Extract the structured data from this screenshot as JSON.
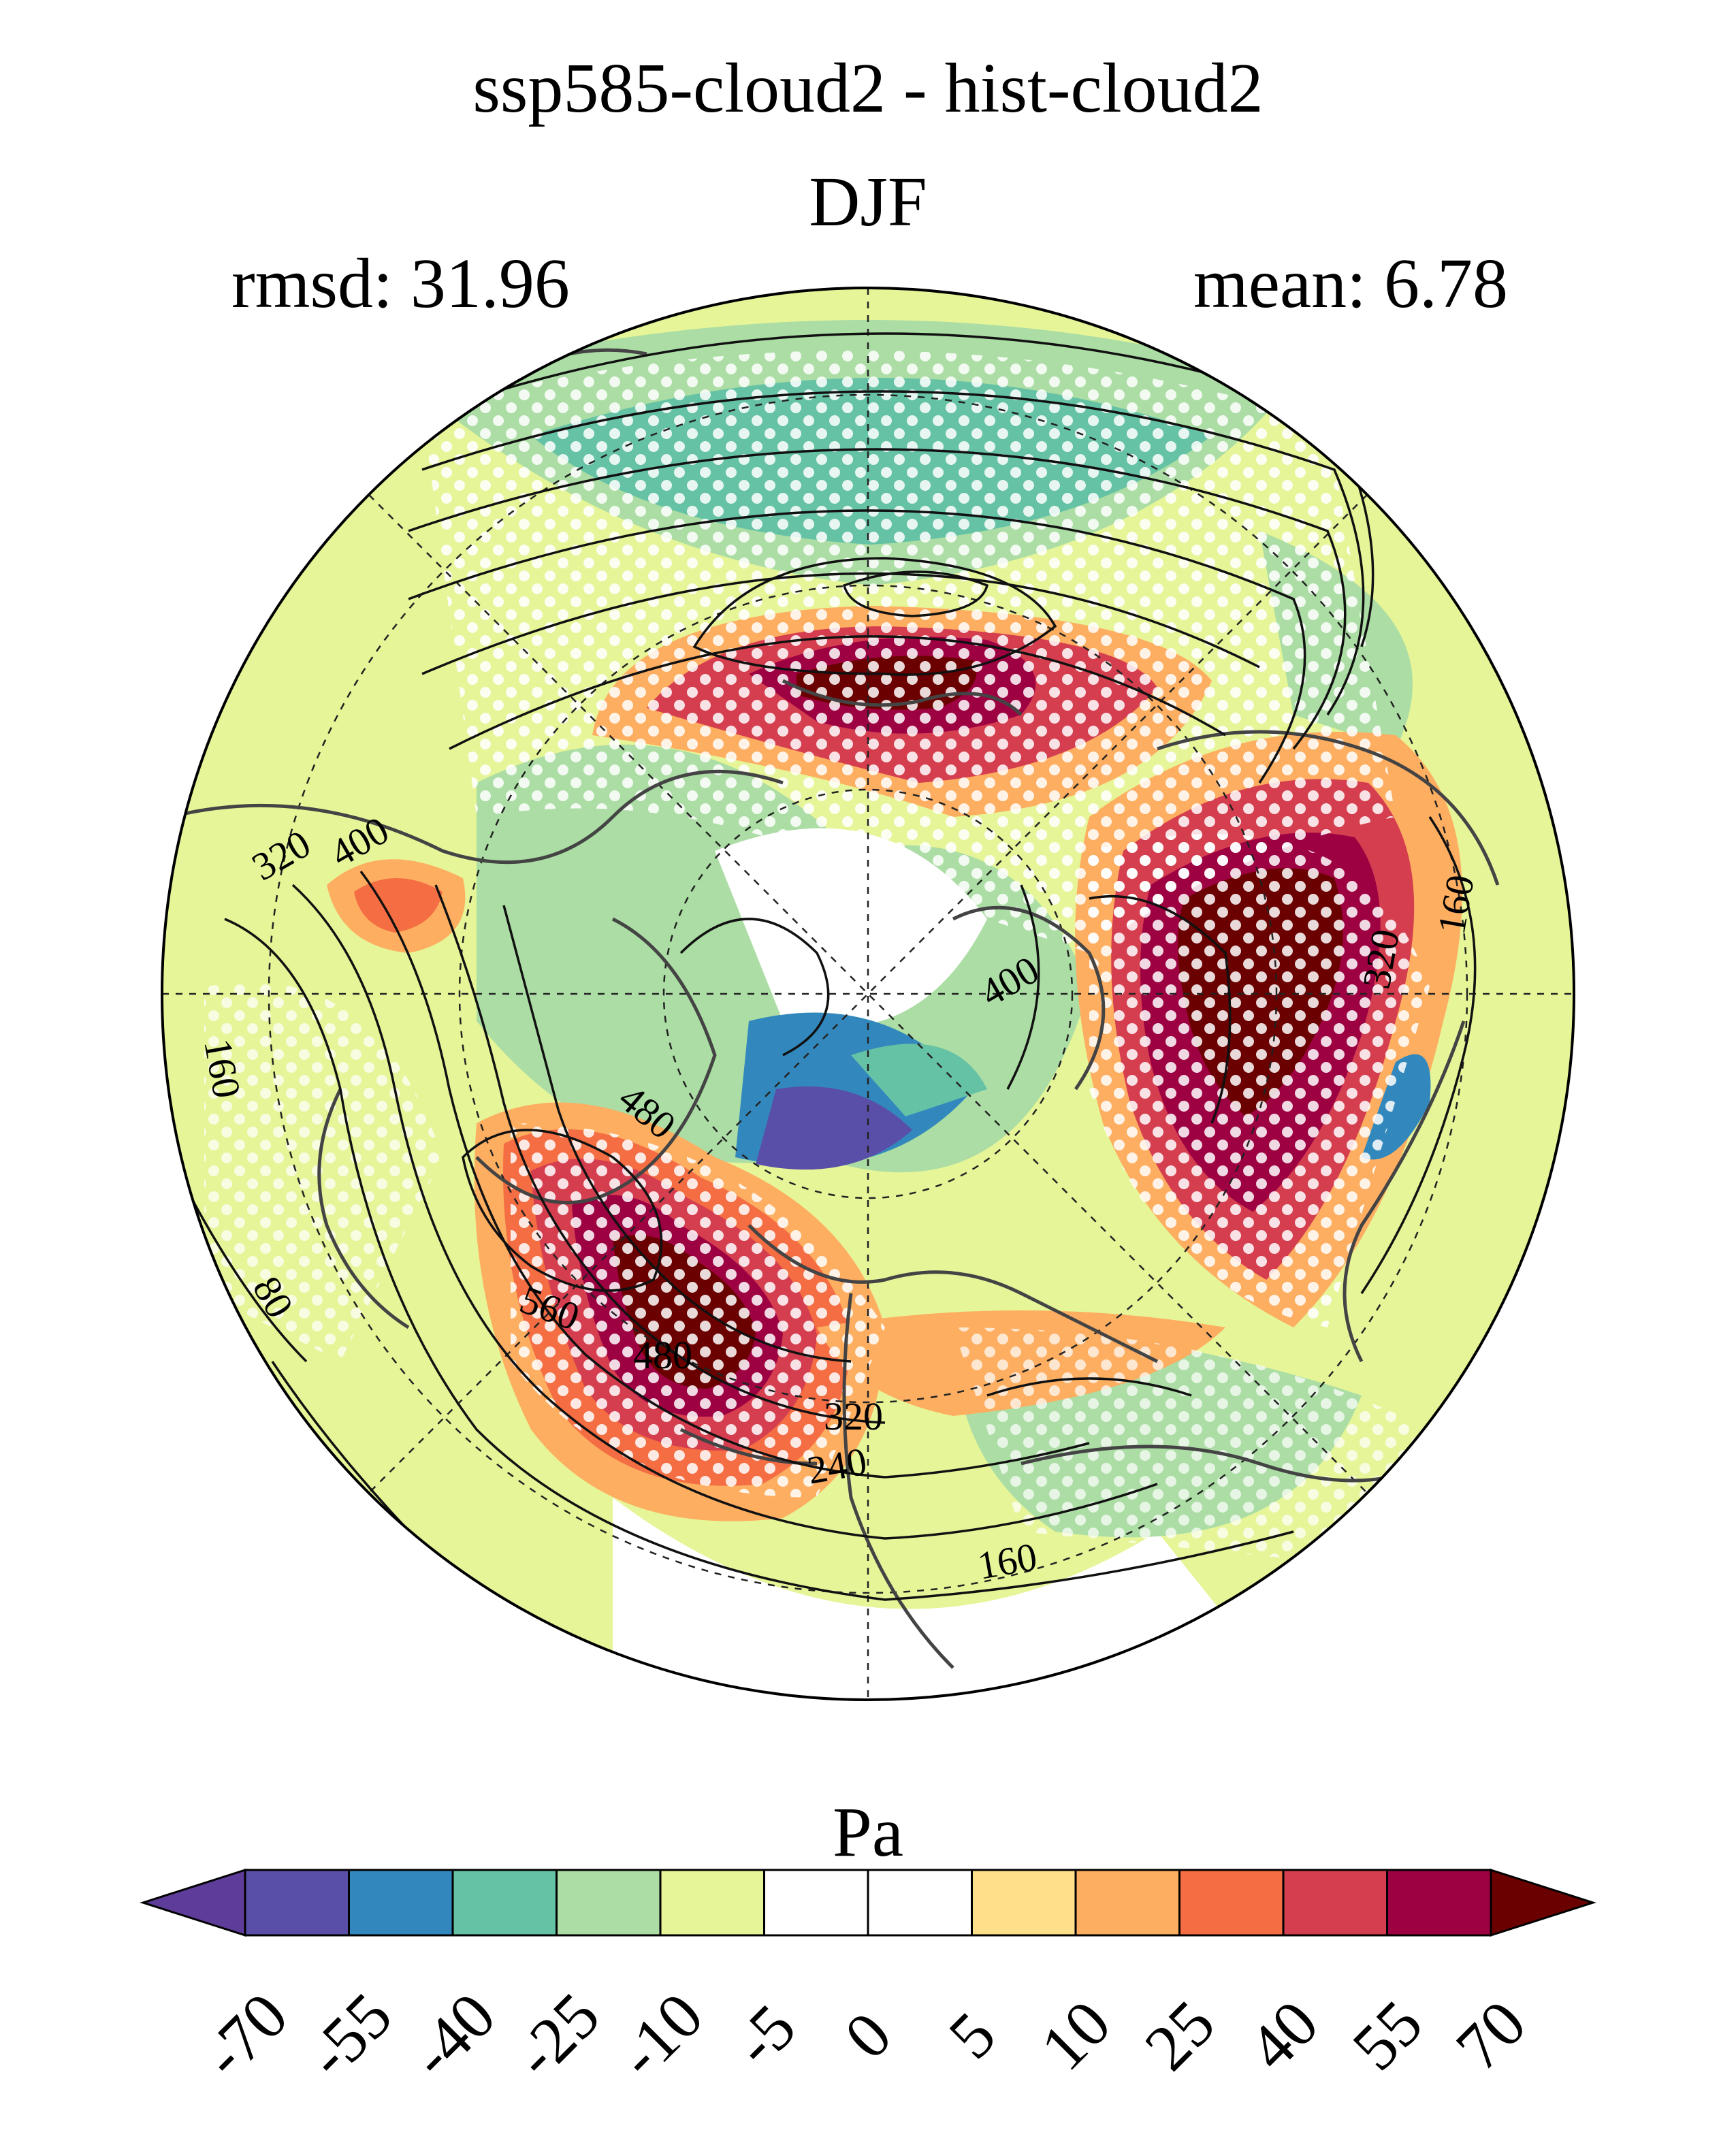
{
  "title": "ssp585-cloud2 - hist-cloud2",
  "season": "DJF",
  "rmsd_label": "rmsd: 31.96",
  "mean_label": "mean: 6.78",
  "colorbar": {
    "unit": "Pa",
    "ticks": [
      "-70",
      "-55",
      "-40",
      "-25",
      "-10",
      "-5",
      "0",
      "5",
      "10",
      "25",
      "40",
      "55",
      "70"
    ],
    "colors": [
      "#5e3c99",
      "#5a4fa8",
      "#3288bd",
      "#66c2a5",
      "#abdda4",
      "#e6f598",
      "#ffffff",
      "#ffffff",
      "#fee08b",
      "#fdae61",
      "#f46d43",
      "#d53e4f",
      "#9e0142",
      "#6b0000"
    ]
  },
  "contour_labels": [
    "320",
    "400",
    "160",
    "80",
    "480",
    "560",
    "480",
    "320",
    "240",
    "160",
    "400",
    "320",
    "160"
  ],
  "map": {
    "projection": "north polar stereographic",
    "hatching": "white dots mark significant regions",
    "colors": {
      "land_outline": "#444444",
      "contour": "#111111"
    }
  }
}
